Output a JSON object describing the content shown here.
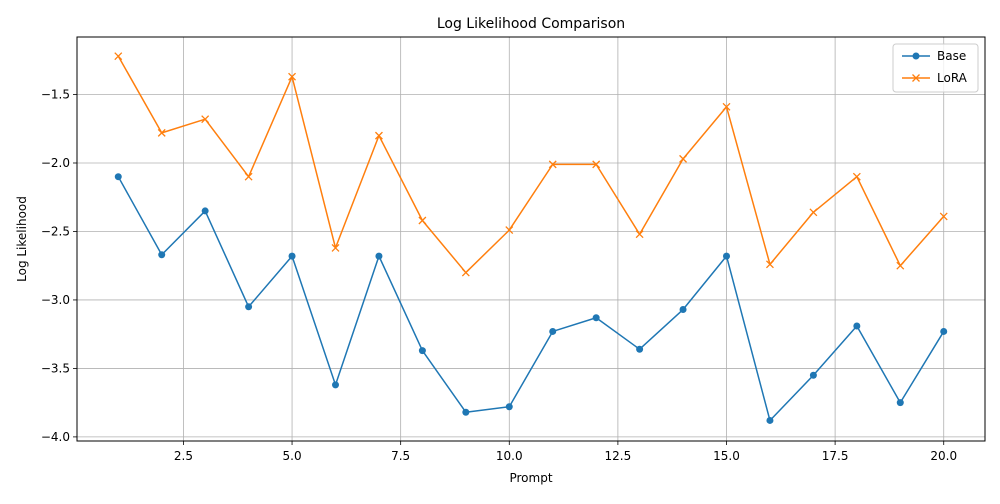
{
  "chart_data": {
    "type": "line",
    "title": "Log Likelihood Comparison",
    "xlabel": "Prompt",
    "ylabel": "Log Likelihood",
    "xlim": [
      0.05,
      20.95
    ],
    "ylim": [
      -4.03,
      -1.08
    ],
    "xticks": [
      2.5,
      5.0,
      7.5,
      10.0,
      12.5,
      15.0,
      17.5,
      20.0
    ],
    "xtick_labels": [
      "2.5",
      "5.0",
      "7.5",
      "10.0",
      "12.5",
      "15.0",
      "17.5",
      "20.0"
    ],
    "yticks": [
      -4.0,
      -3.5,
      -3.0,
      -2.5,
      -2.0,
      -1.5
    ],
    "ytick_labels": [
      "−4.0",
      "−3.5",
      "−3.0",
      "−2.5",
      "−2.0",
      "−1.5"
    ],
    "grid": true,
    "legend_position": "top-right",
    "x": [
      1,
      2,
      3,
      4,
      5,
      6,
      7,
      8,
      9,
      10,
      11,
      12,
      13,
      14,
      15,
      16,
      17,
      18,
      19,
      20
    ],
    "series": [
      {
        "name": "Base",
        "color": "#1f77b4",
        "marker": "circle",
        "values": [
          -2.1,
          -2.67,
          -2.35,
          -3.05,
          -2.68,
          -3.62,
          -2.68,
          -3.37,
          -3.82,
          -3.78,
          -3.23,
          -3.13,
          -3.36,
          -3.07,
          -2.68,
          -3.88,
          -3.55,
          -3.19,
          -3.75,
          -3.23
        ]
      },
      {
        "name": "LoRA",
        "color": "#ff7f0e",
        "marker": "x",
        "values": [
          -1.22,
          -1.78,
          -1.68,
          -2.1,
          -1.37,
          -2.62,
          -1.8,
          -2.42,
          -2.8,
          -2.49,
          -2.01,
          -2.01,
          -2.52,
          -1.97,
          -1.59,
          -2.74,
          -2.36,
          -2.1,
          -2.75,
          -2.39
        ]
      }
    ]
  }
}
